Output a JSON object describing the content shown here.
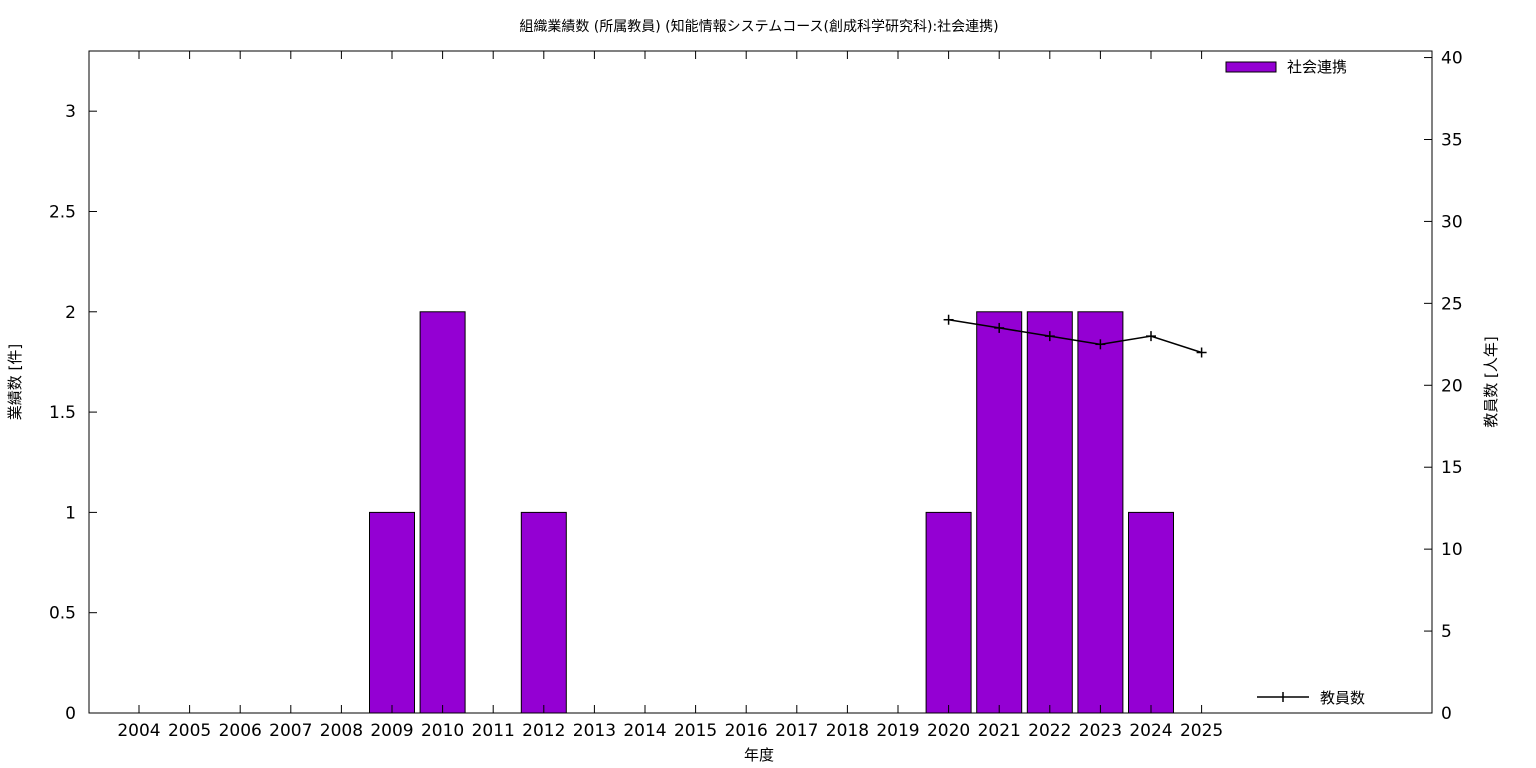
{
  "chart_data": {
    "type": "bar",
    "title": "組織業績数 (所属教員) (知能情報システムコース(創成科学研究科):社会連携)",
    "xlabel": "年度",
    "ylabel": "業績数 [件]",
    "y2label": "教員数 [人年]",
    "categories": [
      "2004",
      "2005",
      "2006",
      "2007",
      "2008",
      "2009",
      "2010",
      "2011",
      "2012",
      "2013",
      "2014",
      "2015",
      "2016",
      "2017",
      "2018",
      "2019",
      "2020",
      "2021",
      "2022",
      "2023",
      "2024",
      "2025"
    ],
    "ylim": [
      0,
      3.3
    ],
    "yticks": [
      "0",
      "0.5",
      "1",
      "1.5",
      "2",
      "2.5",
      "3"
    ],
    "y2lim": [
      0,
      40.4
    ],
    "y2ticks": [
      "0",
      "5",
      "10",
      "15",
      "20",
      "25",
      "30",
      "35",
      "40"
    ],
    "grid": false,
    "series": [
      {
        "name": "社会連携",
        "kind": "bar",
        "axis": "left",
        "color": "#9400d3",
        "values": [
          0,
          0,
          0,
          0,
          0,
          1,
          2,
          0,
          1,
          0,
          0,
          0,
          0,
          0,
          0,
          0,
          1,
          2,
          2,
          2,
          1,
          0
        ]
      },
      {
        "name": "教員数",
        "kind": "line",
        "axis": "right",
        "color": "#000000",
        "x": [
          "2020",
          "2021",
          "2022",
          "2023",
          "2024",
          "2025"
        ],
        "values": [
          24,
          23.5,
          23,
          22.5,
          23,
          22
        ]
      }
    ],
    "legend": {
      "bar_position": "top-right",
      "line_position": "bottom-right"
    }
  }
}
